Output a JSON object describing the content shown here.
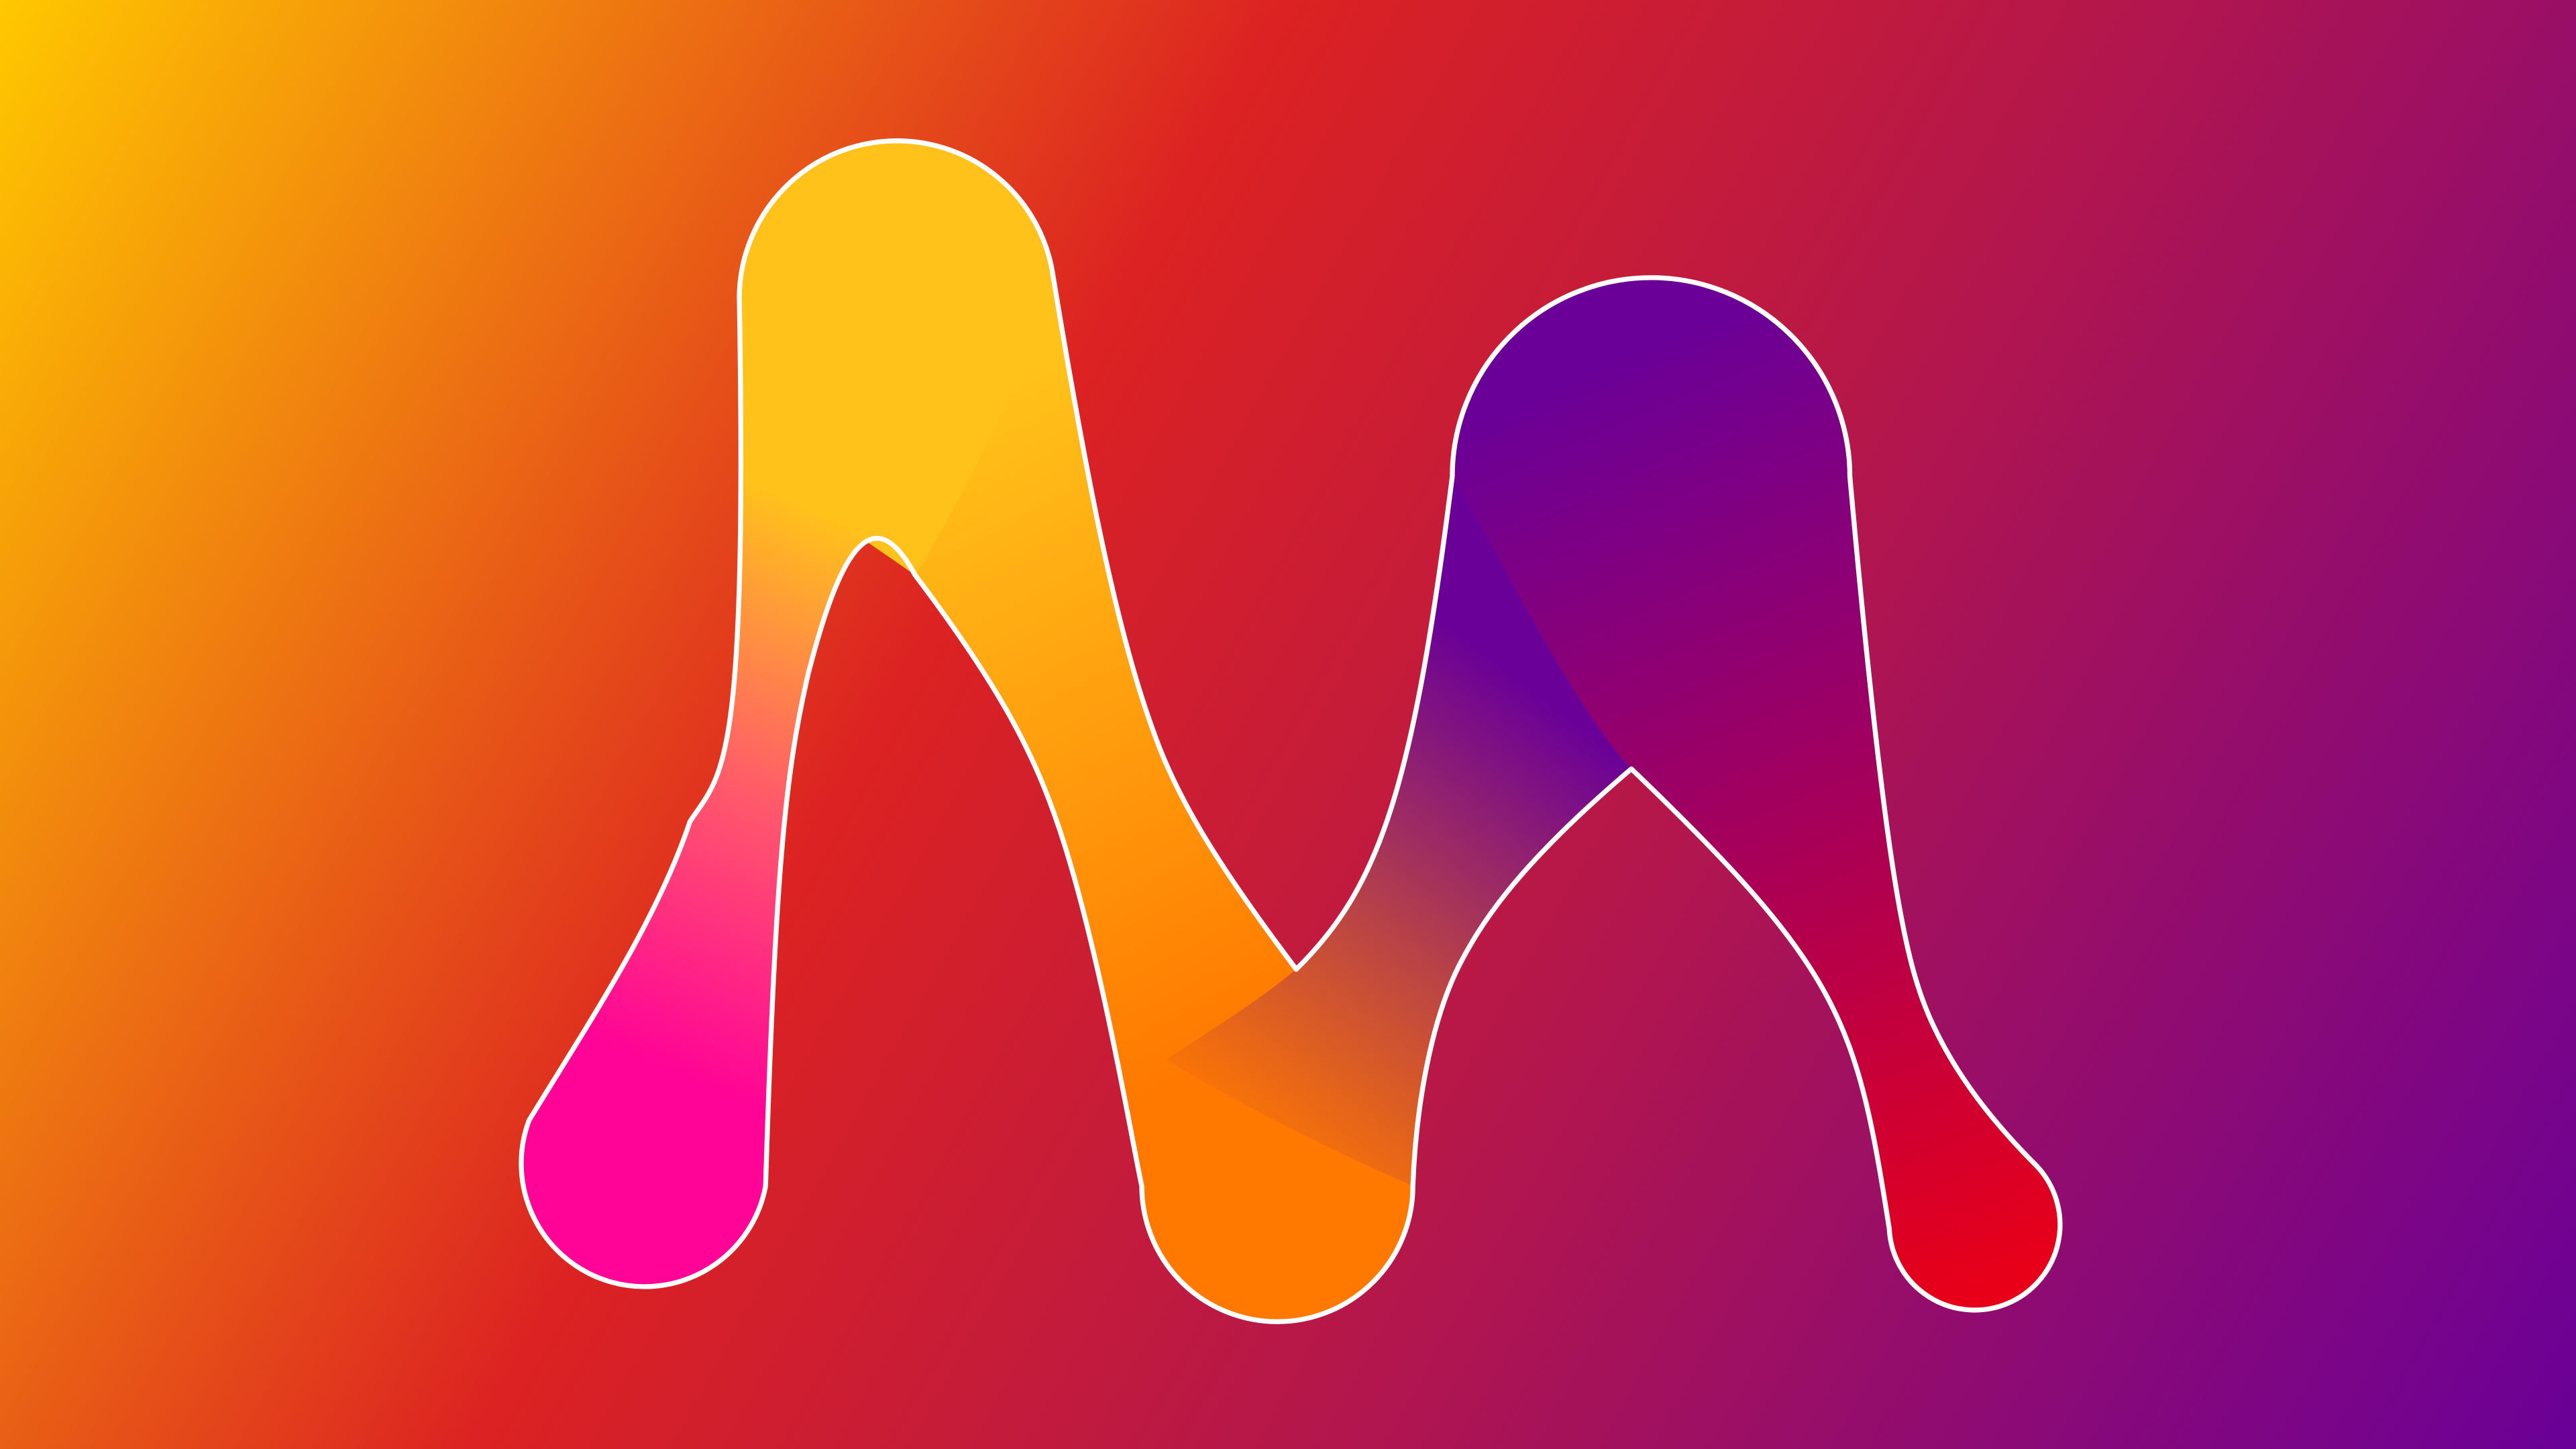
{
  "artwork": {
    "subject": "logo-letter-m",
    "background_colors": [
      "#FFC800",
      "#DC2222",
      "#B5174A",
      "#6A0098"
    ],
    "stroke_color": "#FFFFFF",
    "stroke_top_left_color": "#FFC21A",
    "stroke_right_color": "#6A0098",
    "fill_colors": {
      "left_leg_top": "#FFC21A",
      "left_leg_bottom": "#FF0496",
      "left_diagonal_bottom": "#FF7800",
      "right_peak": "#6A0098",
      "right_leg_bottom": "#E80018"
    }
  }
}
